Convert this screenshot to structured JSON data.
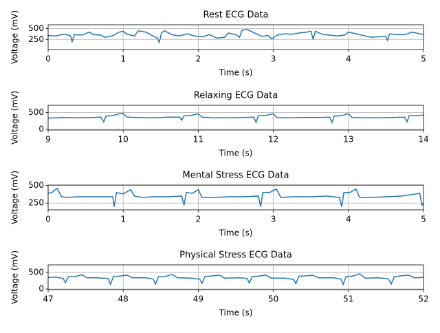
{
  "chart_data": [
    {
      "type": "line",
      "title": "Rest ECG Data",
      "xlabel": "Time (s)",
      "ylabel": "Voltage (mV)",
      "color": "#1f77b4",
      "grid": true,
      "xlim": [
        0,
        5
      ],
      "ylim": [
        15,
        590
      ],
      "xticks": [
        0,
        1,
        2,
        3,
        4,
        5
      ],
      "yticks": [
        250,
        500
      ],
      "x": [
        0,
        0.1,
        0.2,
        0.25,
        0.3,
        0.32,
        0.35,
        0.45,
        0.55,
        0.6,
        0.7,
        0.75,
        0.85,
        0.95,
        1.0,
        1.05,
        1.15,
        1.2,
        1.3,
        1.4,
        1.45,
        1.48,
        1.51,
        1.55,
        1.65,
        1.75,
        1.85,
        1.95,
        2.05,
        2.15,
        2.25,
        2.35,
        2.4,
        2.5,
        2.55,
        2.58,
        2.65,
        2.75,
        2.85,
        2.93,
        2.98,
        3.05,
        3.15,
        3.25,
        3.35,
        3.45,
        3.5,
        3.53,
        3.56,
        3.65,
        3.75,
        3.85,
        3.95,
        4.0,
        4.1,
        4.2,
        4.3,
        4.4,
        4.5,
        4.52,
        4.55,
        4.65,
        4.75,
        4.85,
        4.95,
        5.0
      ],
      "values": [
        340,
        330,
        370,
        360,
        330,
        200,
        360,
        350,
        420,
        360,
        350,
        300,
        330,
        420,
        440,
        370,
        330,
        450,
        420,
        330,
        290,
        180,
        400,
        450,
        360,
        330,
        380,
        330,
        310,
        360,
        280,
        300,
        400,
        360,
        300,
        460,
        480,
        400,
        320,
        340,
        260,
        350,
        380,
        370,
        400,
        420,
        440,
        260,
        440,
        370,
        350,
        330,
        350,
        420,
        380,
        340,
        300,
        310,
        320,
        230,
        380,
        360,
        360,
        420,
        380,
        370
      ]
    },
    {
      "type": "line",
      "title": "Relaxing ECG Data",
      "xlabel": "Time (s)",
      "ylabel": "Voltage (mV)",
      "color": "#1f77b4",
      "grid": true,
      "xlim": [
        9,
        14
      ],
      "ylim": [
        -20,
        710
      ],
      "xticks": [
        9,
        10,
        11,
        12,
        13,
        14
      ],
      "yticks": [
        0,
        500
      ],
      "x": [
        9,
        9.2,
        9.4,
        9.6,
        9.7,
        9.74,
        9.77,
        9.85,
        9.95,
        10.0,
        10.05,
        10.2,
        10.4,
        10.6,
        10.75,
        10.78,
        10.81,
        10.9,
        11.0,
        11.05,
        11.2,
        11.4,
        11.6,
        11.74,
        11.77,
        11.8,
        11.9,
        12.0,
        12.05,
        12.2,
        12.4,
        12.6,
        12.75,
        12.78,
        12.81,
        12.9,
        13.0,
        13.05,
        13.2,
        13.4,
        13.6,
        13.75,
        13.78,
        13.81,
        13.9,
        14.0
      ],
      "values": [
        330,
        350,
        340,
        350,
        360,
        220,
        390,
        400,
        460,
        470,
        360,
        350,
        340,
        360,
        360,
        270,
        400,
        410,
        460,
        360,
        340,
        340,
        350,
        360,
        200,
        400,
        410,
        460,
        340,
        340,
        350,
        350,
        360,
        200,
        390,
        400,
        460,
        350,
        340,
        340,
        350,
        360,
        220,
        400,
        400,
        420
      ]
    },
    {
      "type": "line",
      "title": "Mental Stress ECG Data",
      "xlabel": "Time (s)",
      "ylabel": "Voltage (mV)",
      "color": "#1f77b4",
      "grid": true,
      "xlim": [
        0,
        5
      ],
      "ylim": [
        155,
        505
      ],
      "xticks": [
        0,
        1,
        2,
        3,
        4,
        5
      ],
      "yticks": [
        250,
        500
      ],
      "x": [
        0,
        0.05,
        0.12,
        0.18,
        0.25,
        0.4,
        0.6,
        0.8,
        0.86,
        0.88,
        0.91,
        1.0,
        1.1,
        1.15,
        1.25,
        1.4,
        1.6,
        1.78,
        1.81,
        1.84,
        1.92,
        2.0,
        2.05,
        2.2,
        2.4,
        2.6,
        2.8,
        2.83,
        2.86,
        2.95,
        3.04,
        3.1,
        3.25,
        3.5,
        3.7,
        3.88,
        3.91,
        3.94,
        4.02,
        4.1,
        4.15,
        4.3,
        4.5,
        4.7,
        4.9,
        4.95,
        4.98,
        5.0
      ],
      "values": [
        390,
        400,
        460,
        340,
        330,
        340,
        340,
        340,
        340,
        200,
        400,
        380,
        440,
        350,
        330,
        340,
        340,
        350,
        220,
        400,
        390,
        440,
        330,
        330,
        340,
        340,
        350,
        200,
        400,
        400,
        450,
        330,
        340,
        340,
        350,
        330,
        200,
        400,
        400,
        450,
        330,
        330,
        340,
        350,
        380,
        390,
        220,
        250
      ]
    },
    {
      "type": "line",
      "title": "Physical Stress ECG Data",
      "xlabel": "Time (s)",
      "ylabel": "Voltage (mV)",
      "color": "#1f77b4",
      "grid": true,
      "xlim": [
        47,
        52
      ],
      "ylim": [
        -20,
        730
      ],
      "xticks": [
        47,
        48,
        49,
        50,
        51,
        52
      ],
      "yticks": [
        0,
        500
      ],
      "x": [
        47,
        47.1,
        47.2,
        47.23,
        47.27,
        47.35,
        47.45,
        47.52,
        47.65,
        47.8,
        47.83,
        47.87,
        47.95,
        48.05,
        48.12,
        48.3,
        48.4,
        48.43,
        48.47,
        48.55,
        48.65,
        48.72,
        48.9,
        49.02,
        49.05,
        49.09,
        49.2,
        49.28,
        49.35,
        49.55,
        49.65,
        49.68,
        49.72,
        49.8,
        49.9,
        49.97,
        50.15,
        50.27,
        50.3,
        50.34,
        50.45,
        50.52,
        50.6,
        50.8,
        50.9,
        50.93,
        50.97,
        51.05,
        51.15,
        51.22,
        51.4,
        51.53,
        51.57,
        51.61,
        51.7,
        51.8,
        51.88,
        52.0
      ],
      "values": [
        350,
        360,
        320,
        190,
        370,
        370,
        430,
        340,
        340,
        320,
        140,
        380,
        390,
        420,
        340,
        340,
        300,
        150,
        370,
        370,
        440,
        340,
        330,
        300,
        170,
        380,
        400,
        420,
        330,
        340,
        320,
        180,
        380,
        390,
        420,
        330,
        330,
        290,
        160,
        390,
        400,
        420,
        340,
        340,
        300,
        140,
        380,
        390,
        460,
        330,
        340,
        310,
        150,
        370,
        400,
        420,
        340,
        350
      ]
    }
  ]
}
